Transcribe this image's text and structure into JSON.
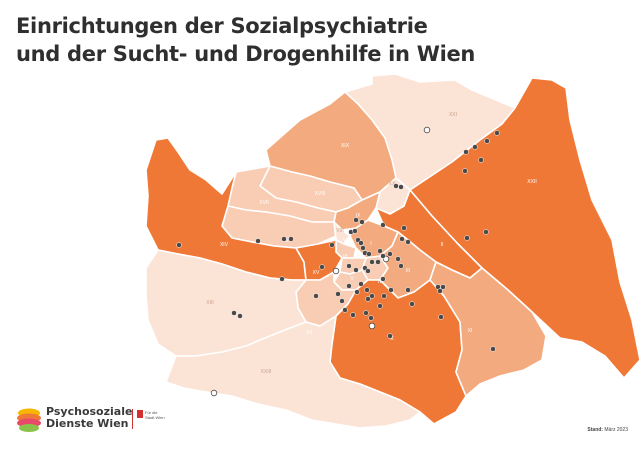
{
  "title": {
    "line1": "Einrichtungen der Sozialpsychiatrie",
    "line2": "und der Sucht- und Drogenhilfe in Wien"
  },
  "colors": {
    "dark": "#f07836",
    "mid": "#f3aa7e",
    "light": "#f8cdb3",
    "pale": "#fbe3d5",
    "border": "#ffffff",
    "marker": "#4a4a4a"
  },
  "districts": [
    {
      "label": "XXI",
      "shade": "pale"
    },
    {
      "label": "XXII",
      "shade": "dark"
    },
    {
      "label": "XIX",
      "shade": "mid"
    },
    {
      "label": "XX",
      "shade": "pale"
    },
    {
      "label": "XVIII",
      "shade": "light"
    },
    {
      "label": "XVII",
      "shade": "light"
    },
    {
      "label": "XVI",
      "shade": "light"
    },
    {
      "label": "XIV",
      "shade": "dark"
    },
    {
      "label": "IX",
      "shade": "mid"
    },
    {
      "label": "II",
      "shade": "dark"
    },
    {
      "label": "VIII",
      "shade": "pale"
    },
    {
      "label": "VII",
      "shade": "light"
    },
    {
      "label": "I",
      "shade": "mid"
    },
    {
      "label": "XV",
      "shade": "dark"
    },
    {
      "label": "VI",
      "shade": "light"
    },
    {
      "label": "IV",
      "shade": "light"
    },
    {
      "label": "V",
      "shade": "light"
    },
    {
      "label": "III",
      "shade": "mid"
    },
    {
      "label": "XII",
      "shade": "light"
    },
    {
      "label": "XIII",
      "shade": "pale"
    },
    {
      "label": "X",
      "shade": "dark"
    },
    {
      "label": "XI",
      "shade": "mid"
    },
    {
      "label": "XXIII",
      "shade": "pale"
    }
  ],
  "markers": [
    {
      "kind": "filled"
    },
    {
      "kind": "filled"
    },
    {
      "kind": "filled"
    },
    {
      "kind": "filled"
    },
    {
      "kind": "hollow"
    },
    {
      "kind": "filled"
    },
    {
      "kind": "filled"
    },
    {
      "kind": "filled"
    },
    {
      "kind": "filled"
    },
    {
      "kind": "filled"
    },
    {
      "kind": "filled"
    },
    {
      "kind": "filled"
    },
    {
      "kind": "filled"
    },
    {
      "kind": "filled"
    },
    {
      "kind": "filled"
    },
    {
      "kind": "filled"
    },
    {
      "kind": "filled"
    },
    {
      "kind": "filled"
    },
    {
      "kind": "filled"
    },
    {
      "kind": "filled"
    },
    {
      "kind": "filled"
    },
    {
      "kind": "filled"
    },
    {
      "kind": "filled"
    },
    {
      "kind": "filled"
    },
    {
      "kind": "filled"
    },
    {
      "kind": "filled"
    },
    {
      "kind": "filled"
    },
    {
      "kind": "filled"
    },
    {
      "kind": "filled"
    },
    {
      "kind": "filled"
    },
    {
      "kind": "filled"
    },
    {
      "kind": "filled"
    },
    {
      "kind": "hollow"
    },
    {
      "kind": "filled"
    },
    {
      "kind": "filled"
    },
    {
      "kind": "filled"
    },
    {
      "kind": "filled"
    },
    {
      "kind": "filled"
    },
    {
      "kind": "filled"
    },
    {
      "kind": "filled"
    },
    {
      "kind": "filled"
    },
    {
      "kind": "filled"
    },
    {
      "kind": "filled"
    },
    {
      "kind": "filled"
    },
    {
      "kind": "filled"
    },
    {
      "kind": "filled"
    },
    {
      "kind": "filled"
    },
    {
      "kind": "filled"
    },
    {
      "kind": "filled"
    },
    {
      "kind": "hollow"
    },
    {
      "kind": "filled"
    },
    {
      "kind": "filled"
    },
    {
      "kind": "filled"
    },
    {
      "kind": "filled"
    },
    {
      "kind": "filled"
    },
    {
      "kind": "filled"
    },
    {
      "kind": "filled"
    },
    {
      "kind": "filled"
    },
    {
      "kind": "filled"
    },
    {
      "kind": "filled"
    },
    {
      "kind": "filled"
    },
    {
      "kind": "filled"
    },
    {
      "kind": "hollow"
    },
    {
      "kind": "filled"
    },
    {
      "kind": "filled"
    },
    {
      "kind": "filled"
    },
    {
      "kind": "filled"
    },
    {
      "kind": "filled"
    },
    {
      "kind": "filled"
    },
    {
      "kind": "hollow"
    },
    {
      "kind": "filled"
    },
    {
      "kind": "filled"
    },
    {
      "kind": "filled"
    }
  ],
  "logo": {
    "line1": "Psychosoziale",
    "line2": "Dienste Wien",
    "colors": [
      "#f7b500",
      "#f07836",
      "#e94a6a",
      "#8bc34a"
    ]
  },
  "wien_badge": {
    "line1": "Für die",
    "line2": "Stadt Wien"
  },
  "stand": {
    "label": "Stand:",
    "value": "März 2023"
  }
}
